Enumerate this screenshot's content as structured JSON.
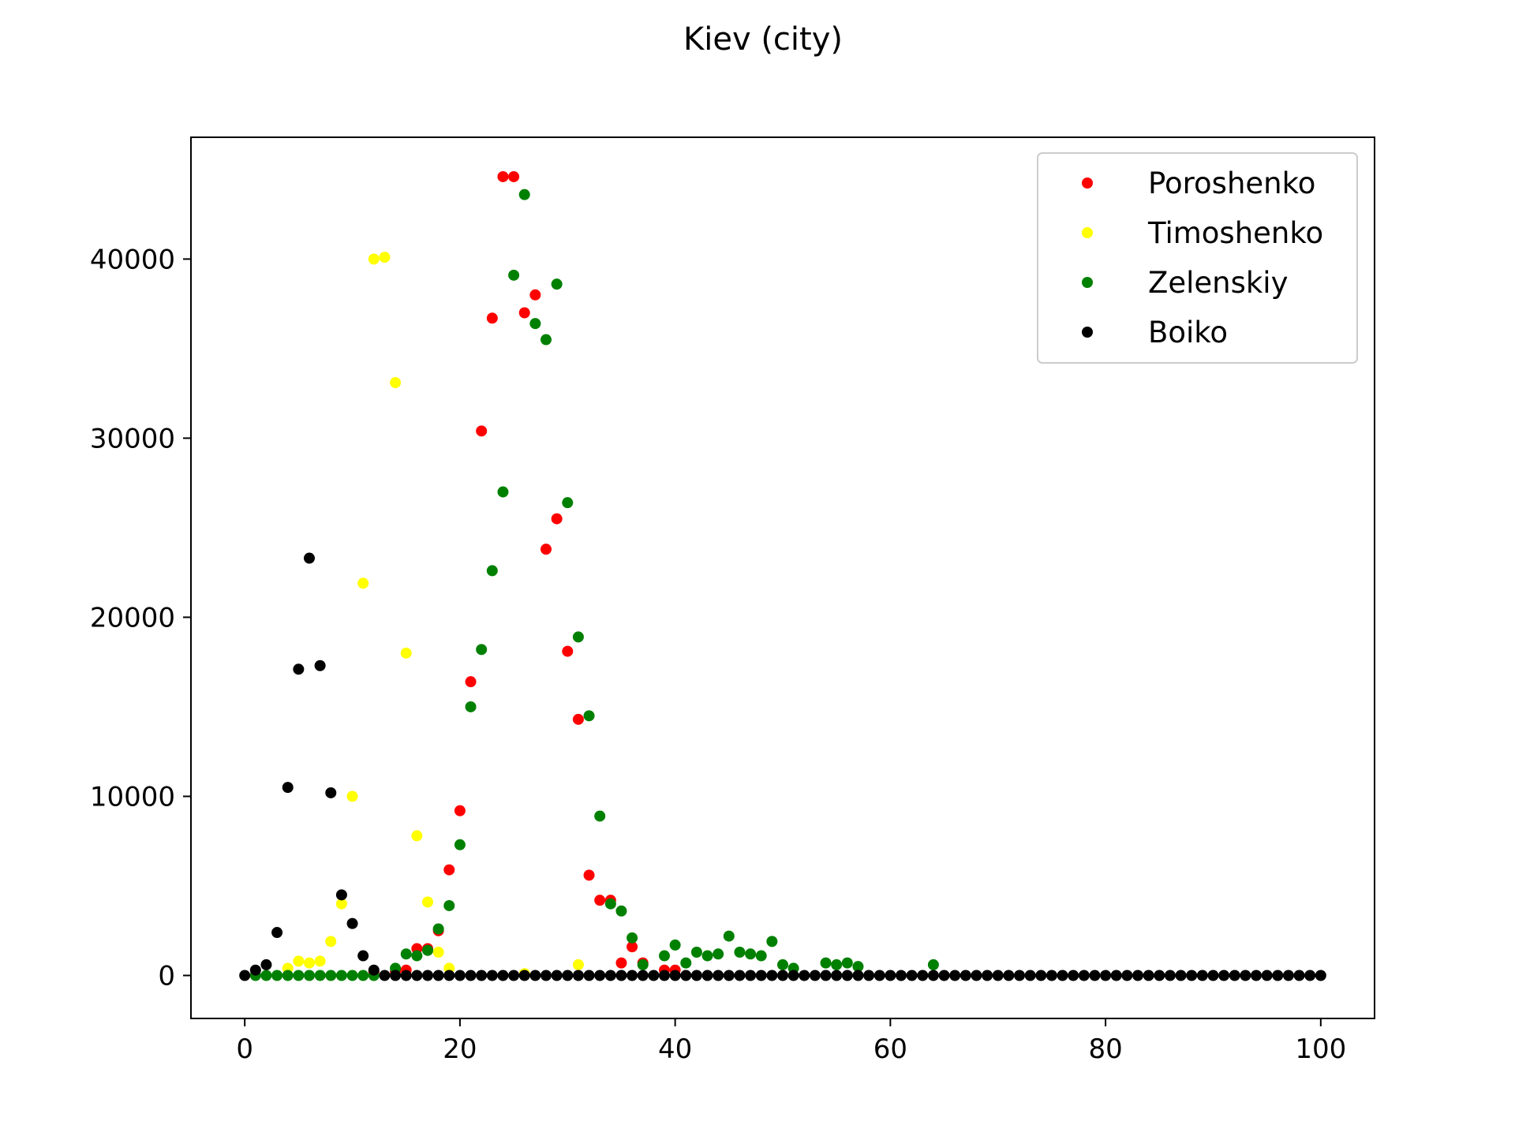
{
  "chart_data": {
    "type": "scatter",
    "title": "Kiev (city)",
    "xlabel": "",
    "ylabel": "",
    "xlim": [
      -5,
      105
    ],
    "ylim": [
      -2400,
      46800
    ],
    "xticks": [
      0,
      20,
      40,
      60,
      80,
      100
    ],
    "yticks": [
      0,
      10000,
      20000,
      30000,
      40000
    ],
    "grid": false,
    "legend_position": "top-right",
    "series": [
      {
        "name": "Poroshenko",
        "color": "#ff0000",
        "points": [
          [
            12,
            200
          ],
          [
            14,
            200
          ],
          [
            15,
            300
          ],
          [
            16,
            1500
          ],
          [
            17,
            1500
          ],
          [
            18,
            2500
          ],
          [
            19,
            5900
          ],
          [
            20,
            9200
          ],
          [
            21,
            16400
          ],
          [
            22,
            30400
          ],
          [
            23,
            36700
          ],
          [
            24,
            44600
          ],
          [
            25,
            44600
          ],
          [
            26,
            37000
          ],
          [
            27,
            38000
          ],
          [
            28,
            23800
          ],
          [
            29,
            25500
          ],
          [
            30,
            18100
          ],
          [
            31,
            14300
          ],
          [
            32,
            5600
          ],
          [
            33,
            4200
          ],
          [
            34,
            4200
          ],
          [
            35,
            700
          ],
          [
            36,
            1600
          ],
          [
            37,
            700
          ],
          [
            39,
            300
          ],
          [
            40,
            300
          ]
        ]
      },
      {
        "name": "Timoshenko",
        "color": "#ffff00",
        "points": [
          [
            4,
            400
          ],
          [
            5,
            800
          ],
          [
            6,
            700
          ],
          [
            7,
            800
          ],
          [
            8,
            1900
          ],
          [
            9,
            4000
          ],
          [
            10,
            10000
          ],
          [
            11,
            21900
          ],
          [
            12,
            40000
          ],
          [
            13,
            40100
          ],
          [
            14,
            33100
          ],
          [
            15,
            18000
          ],
          [
            16,
            7800
          ],
          [
            17,
            4100
          ],
          [
            18,
            1300
          ],
          [
            19,
            400
          ],
          [
            26,
            100
          ],
          [
            31,
            600
          ]
        ]
      },
      {
        "name": "Zelenskiy",
        "color": "#008000",
        "points": [
          [
            1,
            0
          ],
          [
            2,
            0
          ],
          [
            3,
            0
          ],
          [
            4,
            0
          ],
          [
            5,
            0
          ],
          [
            6,
            0
          ],
          [
            7,
            0
          ],
          [
            8,
            0
          ],
          [
            9,
            0
          ],
          [
            10,
            0
          ],
          [
            11,
            0
          ],
          [
            12,
            0
          ],
          [
            14,
            400
          ],
          [
            15,
            1200
          ],
          [
            16,
            1100
          ],
          [
            17,
            1400
          ],
          [
            18,
            2600
          ],
          [
            19,
            3900
          ],
          [
            20,
            7300
          ],
          [
            21,
            15000
          ],
          [
            22,
            18200
          ],
          [
            23,
            22600
          ],
          [
            24,
            27000
          ],
          [
            25,
            39100
          ],
          [
            26,
            43600
          ],
          [
            27,
            36400
          ],
          [
            28,
            35500
          ],
          [
            29,
            38600
          ],
          [
            30,
            26400
          ],
          [
            31,
            18900
          ],
          [
            32,
            14500
          ],
          [
            33,
            8900
          ],
          [
            34,
            4000
          ],
          [
            35,
            3600
          ],
          [
            36,
            2100
          ],
          [
            37,
            600
          ],
          [
            39,
            1100
          ],
          [
            40,
            1700
          ],
          [
            41,
            700
          ],
          [
            42,
            1300
          ],
          [
            43,
            1100
          ],
          [
            44,
            1200
          ],
          [
            45,
            2200
          ],
          [
            46,
            1300
          ],
          [
            47,
            1200
          ],
          [
            48,
            1100
          ],
          [
            49,
            1900
          ],
          [
            50,
            600
          ],
          [
            51,
            400
          ],
          [
            54,
            700
          ],
          [
            55,
            600
          ],
          [
            56,
            700
          ],
          [
            57,
            500
          ],
          [
            64,
            600
          ]
        ]
      },
      {
        "name": "Boiko",
        "color": "#000000",
        "points": [
          [
            0,
            0
          ],
          [
            1,
            300
          ],
          [
            2,
            600
          ],
          [
            3,
            2400
          ],
          [
            4,
            10500
          ],
          [
            5,
            17100
          ],
          [
            6,
            23300
          ],
          [
            7,
            17300
          ],
          [
            8,
            10200
          ],
          [
            9,
            4500
          ],
          [
            10,
            2900
          ],
          [
            11,
            1100
          ],
          [
            12,
            300
          ],
          [
            13,
            0
          ],
          [
            14,
            0
          ],
          [
            15,
            0
          ],
          [
            16,
            0
          ],
          [
            17,
            0
          ],
          [
            18,
            0
          ],
          [
            19,
            0
          ],
          [
            20,
            0
          ],
          [
            21,
            0
          ],
          [
            22,
            0
          ],
          [
            23,
            0
          ],
          [
            24,
            0
          ],
          [
            25,
            0
          ],
          [
            26,
            0
          ],
          [
            27,
            0
          ],
          [
            28,
            0
          ],
          [
            29,
            0
          ],
          [
            30,
            0
          ],
          [
            31,
            0
          ],
          [
            32,
            0
          ],
          [
            33,
            0
          ],
          [
            34,
            0
          ],
          [
            35,
            0
          ],
          [
            36,
            0
          ],
          [
            37,
            0
          ],
          [
            38,
            0
          ],
          [
            39,
            0
          ],
          [
            40,
            0
          ],
          [
            41,
            0
          ],
          [
            42,
            0
          ],
          [
            43,
            0
          ],
          [
            44,
            0
          ],
          [
            45,
            0
          ],
          [
            46,
            0
          ],
          [
            47,
            0
          ],
          [
            48,
            0
          ],
          [
            49,
            0
          ],
          [
            50,
            0
          ],
          [
            51,
            0
          ],
          [
            52,
            0
          ],
          [
            53,
            0
          ],
          [
            54,
            0
          ],
          [
            55,
            0
          ],
          [
            56,
            0
          ],
          [
            57,
            0
          ],
          [
            58,
            0
          ],
          [
            59,
            0
          ],
          [
            60,
            0
          ],
          [
            61,
            0
          ],
          [
            62,
            0
          ],
          [
            63,
            0
          ],
          [
            64,
            0
          ],
          [
            65,
            0
          ],
          [
            66,
            0
          ],
          [
            67,
            0
          ],
          [
            68,
            0
          ],
          [
            69,
            0
          ],
          [
            70,
            0
          ],
          [
            71,
            0
          ],
          [
            72,
            0
          ],
          [
            73,
            0
          ],
          [
            74,
            0
          ],
          [
            75,
            0
          ],
          [
            76,
            0
          ],
          [
            77,
            0
          ],
          [
            78,
            0
          ],
          [
            79,
            0
          ],
          [
            80,
            0
          ],
          [
            81,
            0
          ],
          [
            82,
            0
          ],
          [
            83,
            0
          ],
          [
            84,
            0
          ],
          [
            85,
            0
          ],
          [
            86,
            0
          ],
          [
            87,
            0
          ],
          [
            88,
            0
          ],
          [
            89,
            0
          ],
          [
            90,
            0
          ],
          [
            91,
            0
          ],
          [
            92,
            0
          ],
          [
            93,
            0
          ],
          [
            94,
            0
          ],
          [
            95,
            0
          ],
          [
            96,
            0
          ],
          [
            97,
            0
          ],
          [
            98,
            0
          ],
          [
            99,
            0
          ],
          [
            100,
            0
          ]
        ]
      }
    ]
  }
}
